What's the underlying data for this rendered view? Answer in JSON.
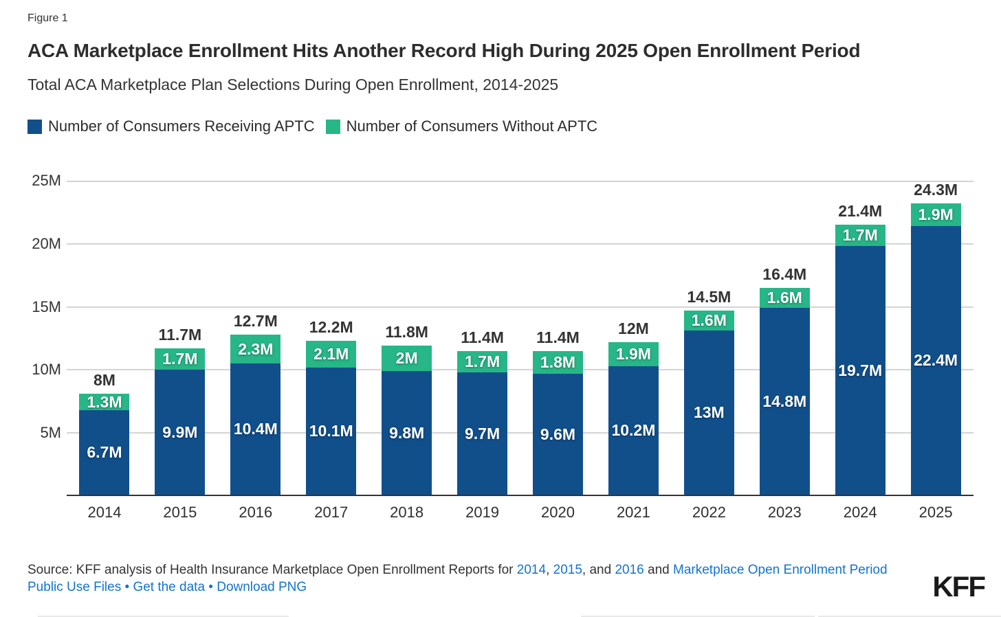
{
  "figure_label": "Figure 1",
  "title": "ACA Marketplace Enrollment Hits Another Record High During 2025 Open Enrollment Period",
  "subtitle": "Total ACA Marketplace Plan Selections During Open Enrollment, 2014-2025",
  "colors": {
    "aptc_blue": "#114F8B",
    "no_aptc_green": "#27B687",
    "link_blue": "#1273D2",
    "gridline": "#d4d4d4",
    "axis": "#333333"
  },
  "legend": [
    {
      "label": "Number of Consumers Receiving APTC",
      "color": "#114F8B"
    },
    {
      "label": "Number of Consumers Without APTC",
      "color": "#27B687"
    }
  ],
  "chart_data": {
    "type": "bar",
    "stacked": true,
    "title": "Total ACA Marketplace Plan Selections During Open Enrollment, 2014-2025",
    "categories": [
      "2014",
      "2015",
      "2016",
      "2017",
      "2018",
      "2019",
      "2020",
      "2021",
      "2022",
      "2023",
      "2024",
      "2025"
    ],
    "series": [
      {
        "name": "Number of Consumers Receiving APTC",
        "color": "#114F8B",
        "values": [
          6.7,
          9.9,
          10.4,
          10.1,
          9.8,
          9.7,
          9.6,
          10.2,
          13,
          14.8,
          19.7,
          22.4
        ],
        "labels": [
          "6.7M",
          "9.9M",
          "10.4M",
          "10.1M",
          "9.8M",
          "9.7M",
          "9.6M",
          "10.2M",
          "13M",
          "14.8M",
          "19.7M",
          "22.4M"
        ]
      },
      {
        "name": "Number of Consumers Without APTC",
        "color": "#27B687",
        "values": [
          1.3,
          1.7,
          2.3,
          2.1,
          2.0,
          1.7,
          1.8,
          1.9,
          1.6,
          1.6,
          1.7,
          1.9
        ],
        "labels": [
          "1.3M",
          "1.7M",
          "2.3M",
          "2.1M",
          "2M",
          "1.7M",
          "1.8M",
          "1.9M",
          "1.6M",
          "1.6M",
          "1.7M",
          "1.9M"
        ]
      }
    ],
    "totals": [
      8,
      11.7,
      12.7,
      12.2,
      11.8,
      11.4,
      11.4,
      12,
      14.5,
      16.4,
      21.4,
      24.3
    ],
    "total_labels": [
      "8M",
      "11.7M",
      "12.7M",
      "12.2M",
      "11.8M",
      "11.4M",
      "11.4M",
      "12M",
      "14.5M",
      "16.4M",
      "21.4M",
      "24.3M"
    ],
    "y_ticks": [
      "25M",
      "20M",
      "15M",
      "10M",
      "5M"
    ],
    "ylim": [
      0,
      25
    ],
    "grid": true,
    "legend_position": "top"
  },
  "source": {
    "segments": [
      {
        "type": "text",
        "text": "Source: KFF analysis of Health Insurance Marketplace Open Enrollment Reports for "
      },
      {
        "type": "link",
        "text": "2014",
        "name": "source-link-2014"
      },
      {
        "type": "text",
        "text": ", "
      },
      {
        "type": "link",
        "text": "2015",
        "name": "source-link-2015"
      },
      {
        "type": "text",
        "text": ", and "
      },
      {
        "type": "link",
        "text": "2016",
        "name": "source-link-2016"
      },
      {
        "type": "text",
        "text": " and "
      },
      {
        "type": "link",
        "text": "Marketplace Open Enrollment Period",
        "name": "source-link-public-use-files"
      },
      {
        "type": "br"
      },
      {
        "type": "link",
        "text": "Public Use Files",
        "name": "source-link-public-use-files"
      },
      {
        "type": "bullet",
        "text": " • "
      },
      {
        "type": "link",
        "text": "Get the data",
        "name": "get-the-data-link"
      },
      {
        "type": "bullet",
        "text": " • "
      },
      {
        "type": "link",
        "text": "Download PNG",
        "name": "download-png-link"
      }
    ]
  },
  "logo_text": "KFF"
}
